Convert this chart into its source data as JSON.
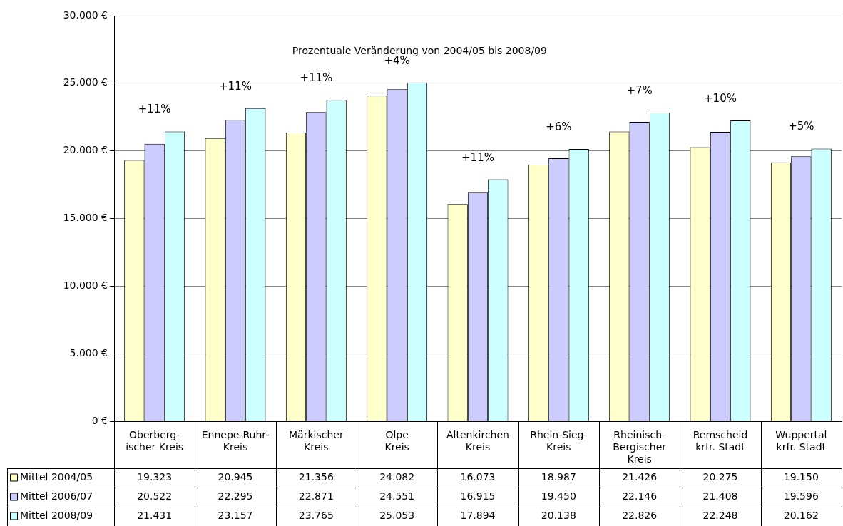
{
  "chart_data": {
    "type": "bar",
    "categories": [
      "Oberberg-\nischer Kreis",
      "Ennepe-Ruhr-\nKreis",
      "Märkischer\nKreis",
      "Olpe\nKreis",
      "Altenkirchen\nKreis",
      "Rhein-Sieg-\nKreis",
      "Rheinisch-\nBergischer\nKreis",
      "Remscheid\nkrfr. Stadt",
      "Wuppertal\nkrfr. Stadt"
    ],
    "series": [
      {
        "name": "Mittel 2004/05",
        "color": "#ffffcc",
        "values": [
          19323,
          20945,
          21356,
          24082,
          16073,
          18987,
          21426,
          20275,
          19150
        ],
        "value_labels": [
          "19.323",
          "20.945",
          "21.356",
          "24.082",
          "16.073",
          "18.987",
          "21.426",
          "20.275",
          "19.150"
        ]
      },
      {
        "name": "Mittel 2006/07",
        "color": "#ccccff",
        "values": [
          20522,
          22295,
          22871,
          24551,
          16915,
          19450,
          22146,
          21408,
          19596
        ],
        "value_labels": [
          "20.522",
          "22.295",
          "22.871",
          "24.551",
          "16.915",
          "19.450",
          "22.146",
          "21.408",
          "19.596"
        ]
      },
      {
        "name": "Mittel 2008/09",
        "color": "#ccffff",
        "values": [
          21431,
          23157,
          23765,
          25053,
          17894,
          20138,
          22826,
          22248,
          20162
        ],
        "value_labels": [
          "21.431",
          "23.157",
          "23.765",
          "25.053",
          "17.894",
          "20.138",
          "22.826",
          "22.248",
          "20.162"
        ]
      }
    ],
    "ylim": [
      0,
      30000
    ],
    "yticks": [
      {
        "value": 0,
        "label": "0 €"
      },
      {
        "value": 5000,
        "label": "5.000 €"
      },
      {
        "value": 10000,
        "label": "10.000 €"
      },
      {
        "value": 15000,
        "label": "15.000 €"
      },
      {
        "value": 20000,
        "label": "20.000 €"
      },
      {
        "value": 25000,
        "label": "25.000 €"
      },
      {
        "value": 30000,
        "label": "30.000 €"
      }
    ],
    "grid": "y",
    "legend": "bottom left",
    "annotations": [
      "Prozentuale Veränderung von 2004/05 bis 2008/09",
      "+11%",
      "+11%",
      "+11%",
      "+4%",
      "+11%",
      "+6%",
      "+7%",
      "+10%",
      "+5%"
    ]
  }
}
